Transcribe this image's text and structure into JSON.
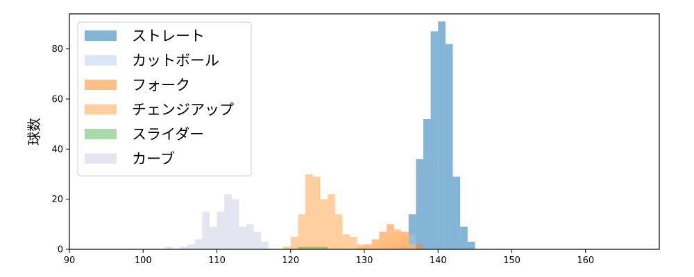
{
  "chart_data": {
    "type": "bar",
    "title": "",
    "xlabel": "",
    "ylabel": "球数",
    "xlim": [
      90,
      170
    ],
    "ylim": [
      0,
      94
    ],
    "xticks": [
      90,
      100,
      110,
      120,
      130,
      140,
      150,
      160
    ],
    "yticks": [
      0,
      20,
      40,
      60,
      80
    ],
    "bin_width": 1,
    "grid": false,
    "legend_position": "top-left",
    "series": [
      {
        "name": "ストレート",
        "color": "#1f77b4",
        "opacity": 0.55,
        "bins": [
          [
            135,
            1
          ],
          [
            136,
            14
          ],
          [
            137,
            36
          ],
          [
            138,
            52
          ],
          [
            139,
            87
          ],
          [
            140,
            91
          ],
          [
            141,
            82
          ],
          [
            142,
            29
          ],
          [
            143,
            9
          ],
          [
            144,
            3
          ]
        ]
      },
      {
        "name": "カットボール",
        "color": "#aec7e8",
        "opacity": 0.45,
        "bins": [
          [
            134,
            2
          ],
          [
            135,
            5
          ],
          [
            136,
            6
          ],
          [
            137,
            1
          ]
        ]
      },
      {
        "name": "フォーク",
        "color": "#ff7f0e",
        "opacity": 0.5,
        "bins": [
          [
            129,
            1
          ],
          [
            130,
            2
          ],
          [
            131,
            4
          ],
          [
            132,
            7
          ],
          [
            133,
            10
          ],
          [
            134,
            7
          ],
          [
            135,
            7
          ],
          [
            136,
            1
          ],
          [
            137,
            2
          ]
        ]
      },
      {
        "name": "チェンジアップ",
        "color": "#ffbb78",
        "opacity": 0.7,
        "bins": [
          [
            119,
            1
          ],
          [
            120,
            5
          ],
          [
            121,
            14
          ],
          [
            122,
            30
          ],
          [
            123,
            29
          ],
          [
            124,
            20
          ],
          [
            125,
            22
          ],
          [
            126,
            14
          ],
          [
            127,
            6
          ],
          [
            128,
            5
          ],
          [
            129,
            2
          ],
          [
            130,
            1
          ],
          [
            132,
            3
          ],
          [
            133,
            5
          ],
          [
            134,
            8
          ],
          [
            135,
            6
          ],
          [
            136,
            2
          ]
        ]
      },
      {
        "name": "スライダー",
        "color": "#2ca02c",
        "opacity": 0.4,
        "bins": [
          [
            121,
            1
          ],
          [
            122,
            1
          ],
          [
            123,
            1
          ],
          [
            124,
            1
          ]
        ]
      },
      {
        "name": "カーブ",
        "color": "#c5c5e0",
        "opacity": 0.45,
        "bins": [
          [
            103,
            1
          ],
          [
            105,
            1
          ],
          [
            106,
            2
          ],
          [
            107,
            4
          ],
          [
            108,
            15
          ],
          [
            109,
            9
          ],
          [
            110,
            15
          ],
          [
            111,
            22
          ],
          [
            112,
            20
          ],
          [
            113,
            9
          ],
          [
            114,
            10
          ],
          [
            115,
            7
          ],
          [
            116,
            3
          ]
        ]
      }
    ]
  }
}
